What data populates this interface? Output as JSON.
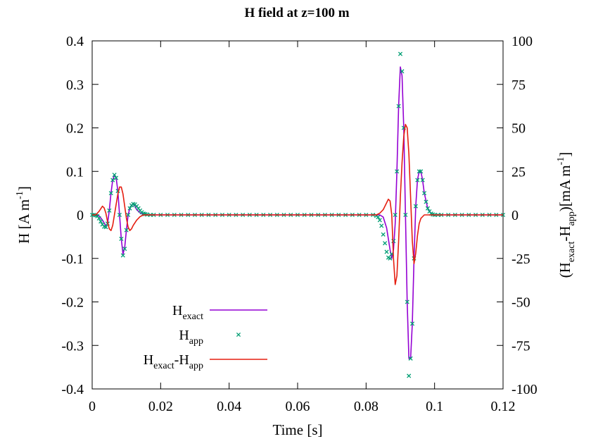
{
  "chart_data": {
    "type": "line",
    "title": "H field at z=100 m",
    "xlabel": "Time [s]",
    "ylabel": {
      "main": "H [A m",
      "sup": "-1",
      "close": "]"
    },
    "y2label": {
      "open": "(H",
      "sub1": "exact",
      "dash": "-H",
      "sub2": "app",
      "mid": ")[mA m",
      "sup": "-1",
      "close": "]"
    },
    "xlim": [
      0,
      0.12
    ],
    "ylim": [
      -0.4,
      0.4
    ],
    "y2lim": [
      -100,
      100
    ],
    "xticks": [
      "0",
      "0.02",
      "0.04",
      "0.06",
      "0.08",
      "0.1",
      "0.12"
    ],
    "yticks": [
      "0.4",
      "0.3",
      "0.2",
      "0.1",
      "0",
      "-0.1",
      "-0.2",
      "-0.3",
      "-0.4"
    ],
    "y2ticks": [
      "100",
      "75",
      "50",
      "25",
      "0",
      "-25",
      "-50",
      "-75",
      "-100"
    ],
    "grid": false,
    "legend_position": "bottom-left",
    "series": [
      {
        "name": {
          "main": "H",
          "sub": "exact"
        },
        "kind": "line",
        "axis": "left",
        "color": "#9400d3",
        "points": [
          [
            0,
            0
          ],
          [
            0.002,
            -0.002
          ],
          [
            0.003,
            -0.012
          ],
          [
            0.004,
            -0.025
          ],
          [
            0.0045,
            -0.02
          ],
          [
            0.005,
            0.01
          ],
          [
            0.0055,
            0.05
          ],
          [
            0.006,
            0.08
          ],
          [
            0.0065,
            0.092
          ],
          [
            0.007,
            0.085
          ],
          [
            0.0075,
            0.055
          ],
          [
            0.008,
            0.0
          ],
          [
            0.0085,
            -0.055
          ],
          [
            0.009,
            -0.09
          ],
          [
            0.0095,
            -0.075
          ],
          [
            0.01,
            -0.035
          ],
          [
            0.0105,
            0.0
          ],
          [
            0.011,
            0.015
          ],
          [
            0.0115,
            0.022
          ],
          [
            0.012,
            0.025
          ],
          [
            0.0125,
            0.02
          ],
          [
            0.013,
            0.012
          ],
          [
            0.014,
            0.005
          ],
          [
            0.015,
            0.001
          ],
          [
            0.016,
            0
          ],
          [
            0.084,
            0
          ],
          [
            0.085,
            -0.005
          ],
          [
            0.086,
            -0.03
          ],
          [
            0.087,
            -0.08
          ],
          [
            0.0875,
            -0.1
          ],
          [
            0.088,
            -0.08
          ],
          [
            0.0885,
            -0.02
          ],
          [
            0.089,
            0.1
          ],
          [
            0.0895,
            0.25
          ],
          [
            0.09,
            0.34
          ],
          [
            0.0905,
            0.32
          ],
          [
            0.091,
            0.2
          ],
          [
            0.0915,
            0.0
          ],
          [
            0.092,
            -0.2
          ],
          [
            0.0925,
            -0.33
          ],
          [
            0.093,
            -0.33
          ],
          [
            0.0935,
            -0.25
          ],
          [
            0.094,
            -0.1
          ],
          [
            0.0945,
            0.02
          ],
          [
            0.095,
            0.08
          ],
          [
            0.0955,
            0.1
          ],
          [
            0.096,
            0.1
          ],
          [
            0.0965,
            0.08
          ],
          [
            0.097,
            0.05
          ],
          [
            0.098,
            0.015
          ],
          [
            0.099,
            0.003
          ],
          [
            0.1,
            0
          ],
          [
            0.12,
            0
          ]
        ]
      },
      {
        "name": {
          "main": "H",
          "sub": "app"
        },
        "kind": "points",
        "axis": "left",
        "color": "#009e73",
        "points": [
          [
            0,
            0
          ],
          [
            0.0005,
            0
          ],
          [
            0.001,
            -0.001
          ],
          [
            0.0015,
            -0.003
          ],
          [
            0.002,
            -0.008
          ],
          [
            0.0025,
            -0.015
          ],
          [
            0.003,
            -0.022
          ],
          [
            0.0035,
            -0.027
          ],
          [
            0.004,
            -0.028
          ],
          [
            0.0045,
            -0.02
          ],
          [
            0.005,
            0.01
          ],
          [
            0.0055,
            0.05
          ],
          [
            0.006,
            0.08
          ],
          [
            0.0065,
            0.092
          ],
          [
            0.007,
            0.085
          ],
          [
            0.0075,
            0.055
          ],
          [
            0.008,
            0.0
          ],
          [
            0.0085,
            -0.055
          ],
          [
            0.009,
            -0.093
          ],
          [
            0.0095,
            -0.078
          ],
          [
            0.01,
            -0.035
          ],
          [
            0.0105,
            0.0
          ],
          [
            0.011,
            0.015
          ],
          [
            0.0115,
            0.022
          ],
          [
            0.012,
            0.025
          ],
          [
            0.0125,
            0.024
          ],
          [
            0.013,
            0.02
          ],
          [
            0.0135,
            0.015
          ],
          [
            0.014,
            0.01
          ],
          [
            0.0145,
            0.006
          ],
          [
            0.015,
            0.003
          ],
          [
            0.0155,
            0.002
          ],
          [
            0.016,
            0.001
          ],
          [
            0.017,
            0
          ],
          [
            0.018,
            0
          ],
          [
            0.02,
            0
          ],
          [
            0.022,
            0
          ],
          [
            0.024,
            0
          ],
          [
            0.026,
            0
          ],
          [
            0.028,
            0
          ],
          [
            0.03,
            0
          ],
          [
            0.032,
            0
          ],
          [
            0.034,
            0
          ],
          [
            0.036,
            0
          ],
          [
            0.038,
            0
          ],
          [
            0.04,
            0
          ],
          [
            0.042,
            0
          ],
          [
            0.044,
            0
          ],
          [
            0.046,
            0
          ],
          [
            0.048,
            0
          ],
          [
            0.05,
            0
          ],
          [
            0.052,
            0
          ],
          [
            0.054,
            0
          ],
          [
            0.056,
            0
          ],
          [
            0.058,
            0
          ],
          [
            0.06,
            0
          ],
          [
            0.062,
            0
          ],
          [
            0.064,
            0
          ],
          [
            0.066,
            0
          ],
          [
            0.068,
            0
          ],
          [
            0.07,
            0
          ],
          [
            0.072,
            0
          ],
          [
            0.074,
            0
          ],
          [
            0.076,
            0
          ],
          [
            0.078,
            0
          ],
          [
            0.08,
            0
          ],
          [
            0.082,
            0
          ],
          [
            0.083,
            -0.002
          ],
          [
            0.0835,
            -0.005
          ],
          [
            0.084,
            -0.012
          ],
          [
            0.0845,
            -0.025
          ],
          [
            0.085,
            -0.045
          ],
          [
            0.0855,
            -0.065
          ],
          [
            0.086,
            -0.085
          ],
          [
            0.0865,
            -0.098
          ],
          [
            0.087,
            -0.1
          ],
          [
            0.0875,
            -0.09
          ],
          [
            0.088,
            -0.06
          ],
          [
            0.0885,
            0.0
          ],
          [
            0.089,
            0.1
          ],
          [
            0.0895,
            0.25
          ],
          [
            0.09,
            0.37
          ],
          [
            0.0905,
            0.33
          ],
          [
            0.091,
            0.2
          ],
          [
            0.0915,
            0.0
          ],
          [
            0.092,
            -0.2
          ],
          [
            0.0925,
            -0.37
          ],
          [
            0.093,
            -0.33
          ],
          [
            0.0935,
            -0.25
          ],
          [
            0.094,
            -0.1
          ],
          [
            0.0945,
            0.02
          ],
          [
            0.095,
            0.08
          ],
          [
            0.0955,
            0.1
          ],
          [
            0.096,
            0.1
          ],
          [
            0.0965,
            0.08
          ],
          [
            0.097,
            0.05
          ],
          [
            0.0975,
            0.03
          ],
          [
            0.098,
            0.015
          ],
          [
            0.0985,
            0.008
          ],
          [
            0.099,
            0.003
          ],
          [
            0.0995,
            0.001
          ],
          [
            0.1,
            0
          ],
          [
            0.101,
            0
          ],
          [
            0.102,
            0
          ],
          [
            0.104,
            0
          ],
          [
            0.106,
            0
          ],
          [
            0.108,
            0
          ],
          [
            0.11,
            0
          ],
          [
            0.112,
            0
          ],
          [
            0.114,
            0
          ],
          [
            0.116,
            0
          ],
          [
            0.118,
            0
          ],
          [
            0.12,
            0
          ]
        ]
      },
      {
        "name": {
          "main": "H",
          "sub": "exact",
          "dash": "-H",
          "sub2": "app"
        },
        "kind": "line",
        "axis": "right",
        "color": "#e51e10",
        "points": [
          [
            0,
            0
          ],
          [
            0.001,
            0
          ],
          [
            0.002,
            2
          ],
          [
            0.003,
            5
          ],
          [
            0.0035,
            4
          ],
          [
            0.004,
            1
          ],
          [
            0.0045,
            -4
          ],
          [
            0.005,
            -8
          ],
          [
            0.0055,
            -9
          ],
          [
            0.006,
            -6
          ],
          [
            0.0065,
            0
          ],
          [
            0.007,
            6
          ],
          [
            0.0075,
            12
          ],
          [
            0.008,
            16
          ],
          [
            0.0085,
            16
          ],
          [
            0.009,
            12
          ],
          [
            0.0095,
            5
          ],
          [
            0.01,
            -2
          ],
          [
            0.0105,
            -7
          ],
          [
            0.011,
            -9
          ],
          [
            0.0115,
            -8
          ],
          [
            0.012,
            -6
          ],
          [
            0.013,
            -3
          ],
          [
            0.014,
            -1
          ],
          [
            0.015,
            0
          ],
          [
            0.08,
            0
          ],
          [
            0.083,
            0
          ],
          [
            0.084,
            1
          ],
          [
            0.085,
            3
          ],
          [
            0.086,
            7
          ],
          [
            0.0865,
            9
          ],
          [
            0.087,
            8
          ],
          [
            0.0875,
            0
          ],
          [
            0.088,
            -25
          ],
          [
            0.0885,
            -40
          ],
          [
            0.089,
            -35
          ],
          [
            0.0895,
            -15
          ],
          [
            0.09,
            10
          ],
          [
            0.0905,
            30
          ],
          [
            0.091,
            45
          ],
          [
            0.0915,
            52
          ],
          [
            0.092,
            50
          ],
          [
            0.0925,
            35
          ],
          [
            0.093,
            10
          ],
          [
            0.0935,
            -15
          ],
          [
            0.094,
            -28
          ],
          [
            0.0945,
            -22
          ],
          [
            0.095,
            -12
          ],
          [
            0.0955,
            -5
          ],
          [
            0.096,
            -2
          ],
          [
            0.097,
            0
          ],
          [
            0.12,
            0
          ]
        ]
      }
    ]
  }
}
